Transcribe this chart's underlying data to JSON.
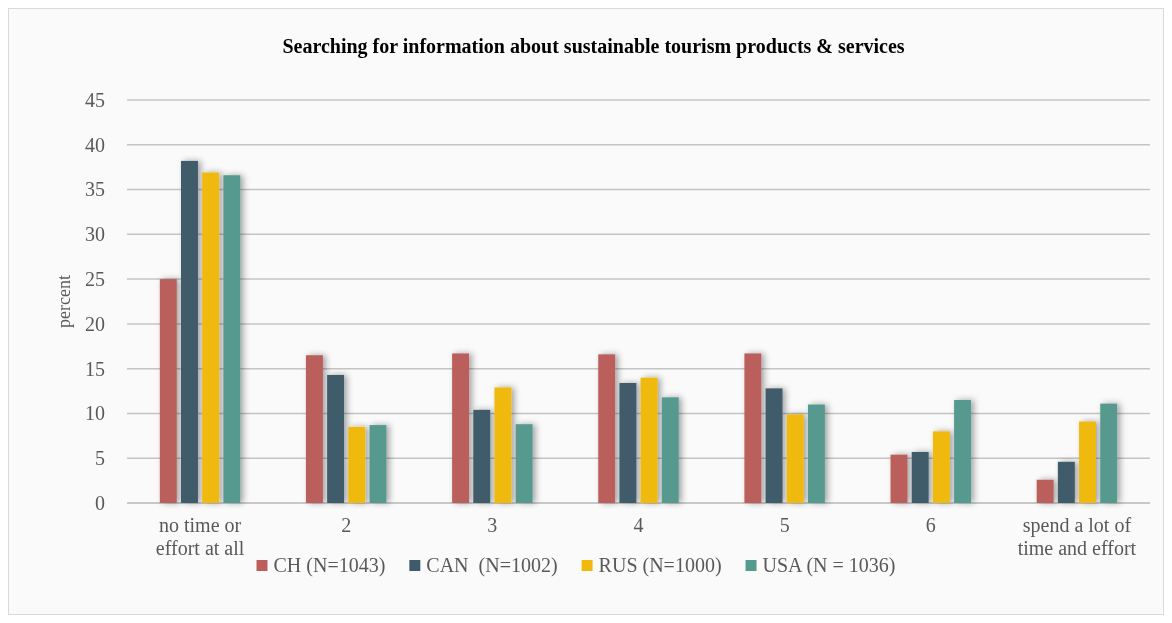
{
  "chart_data": {
    "type": "bar",
    "title": "Searching for information about sustainable tourism products & services",
    "ylabel": "percent",
    "categories": [
      "no time or effort at all",
      "2",
      "3",
      "4",
      "5",
      "6",
      "spend a lot of time and effort"
    ],
    "series": [
      {
        "name": "CH (N=1043)",
        "color": "#bb5f5d",
        "values": [
          25.0,
          16.5,
          16.7,
          16.6,
          16.7,
          5.4,
          2.6
        ]
      },
      {
        "name": "CAN  (N=1002)",
        "color": "#3f5b6b",
        "values": [
          38.2,
          14.3,
          10.4,
          13.4,
          12.8,
          5.7,
          4.6
        ]
      },
      {
        "name": "RUS (N=1000)",
        "color": "#f0b90b",
        "values": [
          36.9,
          8.5,
          12.9,
          14.0,
          9.9,
          8.0,
          9.1
        ]
      },
      {
        "name": "USA (N = 1036)",
        "color": "#569a8f",
        "values": [
          36.6,
          8.7,
          8.8,
          11.8,
          11.0,
          11.5,
          11.1
        ]
      }
    ],
    "ylim": [
      0,
      45
    ],
    "yticks": [
      0,
      5,
      10,
      15,
      20,
      25,
      30,
      35,
      40,
      45
    ],
    "grid": "y",
    "legend": "bottom"
  }
}
